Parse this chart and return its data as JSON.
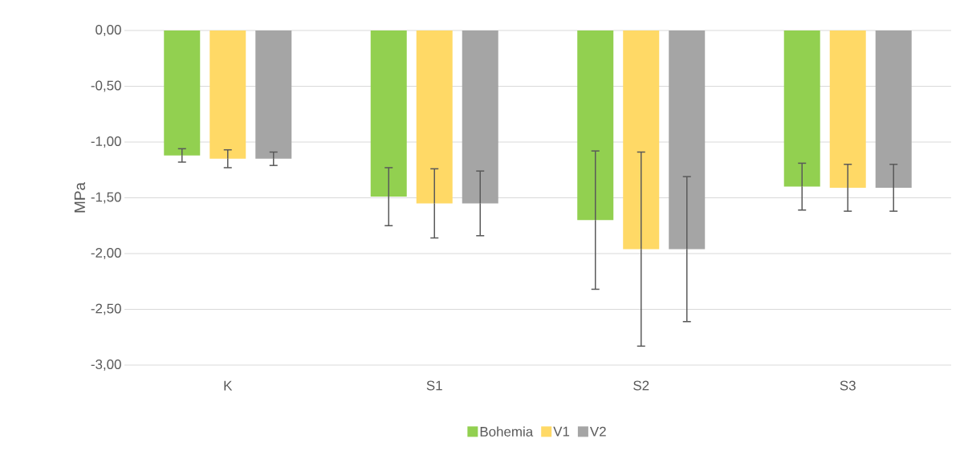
{
  "chart_data": {
    "type": "bar",
    "ylabel": "MPa",
    "categories": [
      "K",
      "S1",
      "S2",
      "S3"
    ],
    "series": [
      {
        "name": "Bohemia",
        "color": "#92d050",
        "values": [
          -1.12,
          -1.49,
          -1.7,
          -1.4
        ],
        "errors": [
          0.06,
          0.26,
          0.62,
          0.21
        ]
      },
      {
        "name": "V1",
        "color": "#ffd966",
        "values": [
          -1.15,
          -1.55,
          -1.96,
          -1.41
        ],
        "errors": [
          0.08,
          0.31,
          0.87,
          0.21
        ]
      },
      {
        "name": "V2",
        "color": "#a5a5a5",
        "values": [
          -1.15,
          -1.55,
          -1.96,
          -1.41
        ],
        "errors": [
          0.06,
          0.29,
          0.65,
          0.21
        ]
      }
    ],
    "ylim": [
      -3,
      0
    ],
    "yticks": [
      {
        "value": 0,
        "label": "0,00"
      },
      {
        "value": -0.5,
        "label": "-0,50"
      },
      {
        "value": -1,
        "label": "-1,00"
      },
      {
        "value": -1.5,
        "label": "-1,50"
      },
      {
        "value": -2,
        "label": "-2,00"
      },
      {
        "value": -2.5,
        "label": "-2,50"
      },
      {
        "value": -3,
        "label": "-3,00"
      }
    ],
    "grid": "y",
    "legend": "bottom"
  }
}
